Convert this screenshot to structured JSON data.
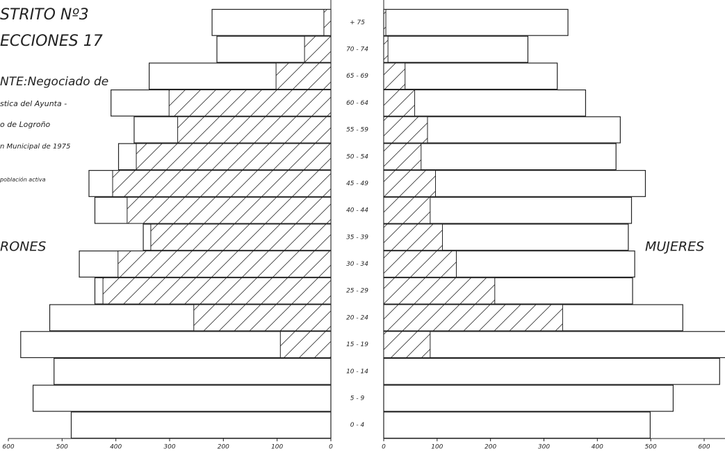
{
  "chart_data": {
    "type": "pyramid",
    "title": "STRITO Nº3",
    "subtitle": "ECCIONES 17",
    "source_lines": [
      "NTE:Negociado de",
      "stica del Ayunta -",
      "o de Logroño",
      "n Municipal de 1975"
    ],
    "legend_label": "población activa",
    "categories": [
      "+ 75",
      "70 - 74",
      "65 - 69",
      "60 - 64",
      "55 - 59",
      "50 - 54",
      "45 - 49",
      "40 - 44",
      "35 - 39",
      "30 - 34",
      "25 - 29",
      "20 - 24",
      "15 - 19",
      "10 - 14",
      "5 - 9",
      "0 - 4"
    ],
    "left": {
      "name": "RONES",
      "values": [
        221,
        212,
        338,
        409,
        366,
        395,
        450,
        439,
        349,
        468,
        439,
        523,
        577,
        515,
        554,
        483
      ],
      "active": [
        13,
        49,
        102,
        301,
        285,
        362,
        406,
        379,
        335,
        396,
        424,
        255,
        94,
        null,
        null,
        null
      ],
      "xlim": [
        0,
        600
      ],
      "xticks": [
        600,
        500,
        400,
        300,
        200,
        100,
        0
      ]
    },
    "right": {
      "name": "MUJERES",
      "values": [
        345,
        270,
        325,
        378,
        443,
        435,
        490,
        464,
        458,
        470,
        466,
        560,
        640,
        629,
        542,
        499
      ],
      "active": [
        4,
        8,
        40,
        58,
        82,
        70,
        97,
        87,
        110,
        136,
        208,
        335,
        87,
        null,
        null,
        null
      ],
      "xlim": [
        0,
        600
      ],
      "xticks": [
        0,
        100,
        200,
        300,
        400,
        500,
        600
      ]
    },
    "bar_color": "#ffffff",
    "line_color": "#222222"
  }
}
